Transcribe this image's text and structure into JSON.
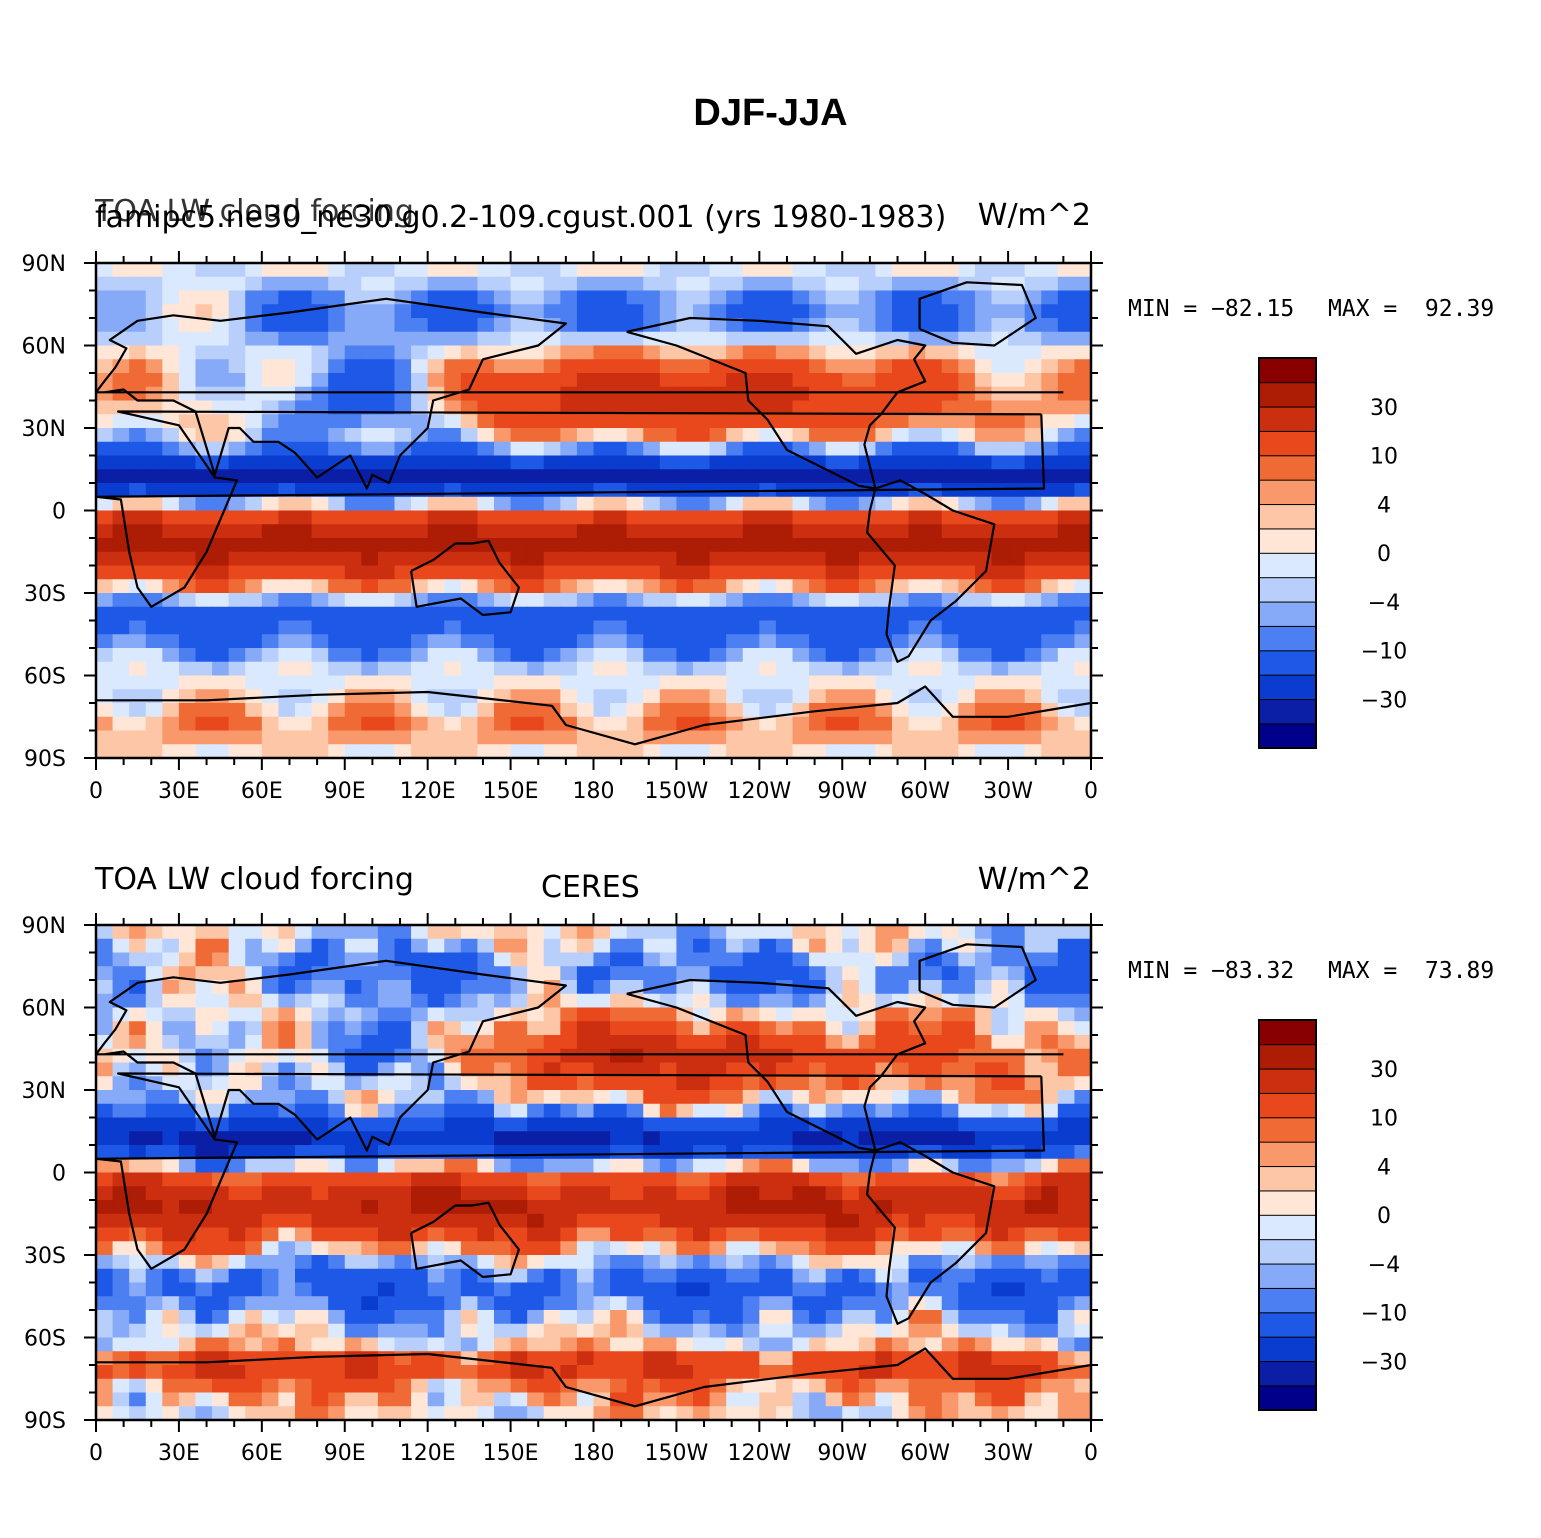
{
  "title": "DJF-JJA",
  "colors": {
    "levels": [
      "#00008b",
      "#0b1fa6",
      "#0a3ccf",
      "#1e58e6",
      "#4b7ff2",
      "#86aaf7",
      "#b8cffb",
      "#dbe9fe",
      "#ffe6d6",
      "#fcc6a7",
      "#f9996b",
      "#f06a35",
      "#e8481c",
      "#cc2e10",
      "#ad1c05",
      "#880000"
    ],
    "coast": "#000000"
  },
  "colorbar_labels": [
    "30",
    "10",
    "4",
    "0",
    "−4",
    "−10",
    "−30"
  ],
  "x_ticks": [
    "0",
    "30E",
    "60E",
    "90E",
    "120E",
    "150E",
    "180",
    "150W",
    "120W",
    "90W",
    "60W",
    "30W",
    "0"
  ],
  "y_ticks": [
    "90N",
    "60N",
    "30N",
    "0",
    "30S",
    "60S",
    "90S"
  ],
  "panels": [
    {
      "left_title": "TOA LW cloud forcing",
      "center_title": "",
      "right_title": "W/m^2",
      "overlay_title": "famipc5.ne30_ne30.g0.2-109.cgust.001 (yrs 1980-1983)",
      "min_label": "MIN = −82.15",
      "max_label": "MAX =  92.39"
    },
    {
      "left_title": "TOA LW cloud forcing",
      "center_title": "CERES",
      "right_title": "W/m^2",
      "overlay_title": "",
      "min_label": "MIN = −83.32",
      "max_label": "MAX =  73.89"
    }
  ],
  "chart_data": [
    {
      "type": "heatmap",
      "title": "TOA LW cloud forcing",
      "subtitle": "famipc5.ne30_ne30.g0.2-109.cgust.001 (yrs 1980-1983)",
      "units": "W/m^2",
      "x_range": [
        0,
        360
      ],
      "y_range": [
        -90,
        90
      ],
      "levels": [
        -40,
        -30,
        -20,
        -10,
        -6,
        -4,
        -2,
        0,
        2,
        4,
        6,
        10,
        20,
        30,
        40
      ],
      "min": -82.15,
      "max": 92.39,
      "lat_bands": [
        {
          "lat": [
            60,
            90
          ],
          "value": -10
        },
        {
          "lat": [
            30,
            60
          ],
          "value": 20
        },
        {
          "lat": [
            0,
            30
          ],
          "value": -30
        },
        {
          "lat": [
            -30,
            0
          ],
          "value": 30
        },
        {
          "lat": [
            -60,
            -30
          ],
          "value": -10
        },
        {
          "lat": [
            -90,
            -60
          ],
          "value": 2
        }
      ]
    },
    {
      "type": "heatmap",
      "title": "TOA LW cloud forcing",
      "subtitle": "CERES",
      "units": "W/m^2",
      "x_range": [
        0,
        360
      ],
      "y_range": [
        -90,
        90
      ],
      "levels": [
        -40,
        -30,
        -20,
        -10,
        -6,
        -4,
        -2,
        0,
        2,
        4,
        6,
        10,
        20,
        30,
        40
      ],
      "min": -83.32,
      "max": 73.89,
      "lat_bands": [
        {
          "lat": [
            60,
            90
          ],
          "value": -10
        },
        {
          "lat": [
            30,
            60
          ],
          "value": 20
        },
        {
          "lat": [
            0,
            30
          ],
          "value": -30
        },
        {
          "lat": [
            -30,
            0
          ],
          "value": 30
        },
        {
          "lat": [
            -60,
            -30
          ],
          "value": -10
        },
        {
          "lat": [
            -90,
            -60
          ],
          "value": 20
        }
      ]
    }
  ]
}
